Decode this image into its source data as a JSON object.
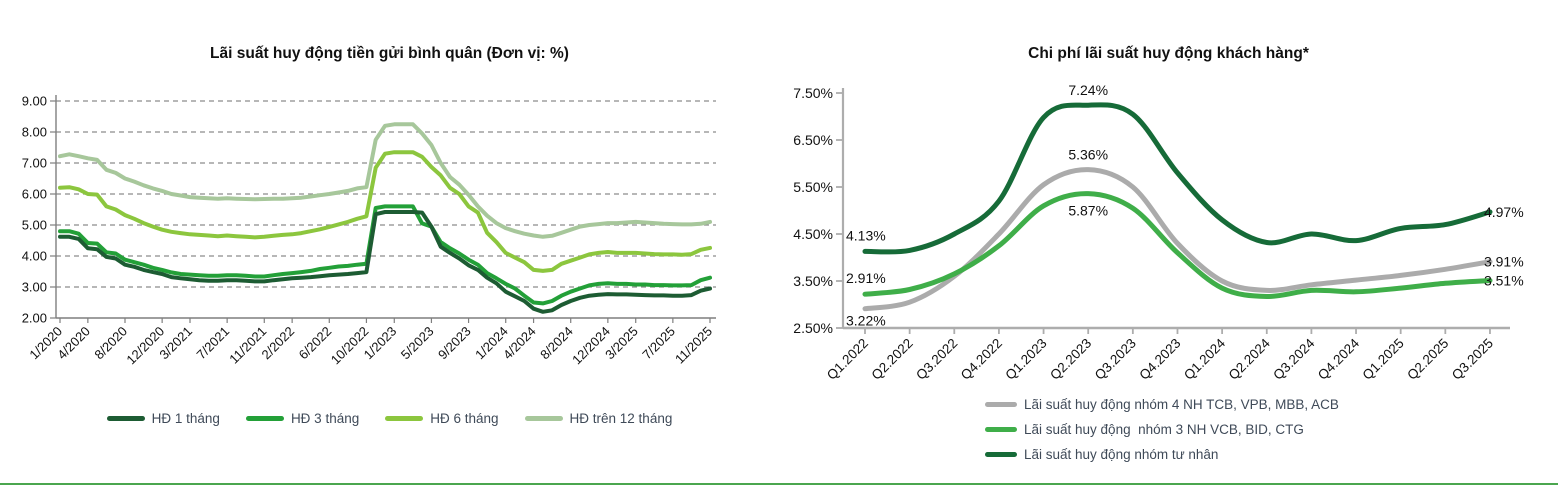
{
  "page": {
    "background": "#FFFFFF",
    "divider_color": "#4BA64F"
  },
  "left_chart": {
    "title": "Lãi suất huy động tiền gửi bình quân (Đơn vị: %)",
    "legend": [
      {
        "label": "HĐ 1 tháng",
        "color": "#1D5C33"
      },
      {
        "label": "HĐ 3 tháng",
        "color": "#23A038"
      },
      {
        "label": "HĐ 6 tháng",
        "color": "#8CC63E"
      },
      {
        "label": "HĐ trên 12 tháng",
        "color": "#A7C79B"
      }
    ]
  },
  "right_chart": {
    "title": "Chi phí lãi suất huy động khách hàng*",
    "legend": [
      {
        "label": "Lãi suất huy động nhóm 4 NH TCB, VPB, MBB, ACB",
        "color": "#ABABAB"
      },
      {
        "label": "Lãi suất huy động  nhóm 3 NH VCB, BID, CTG",
        "color": "#3FAE49"
      },
      {
        "label": "Lãi suất huy động nhóm tư nhân",
        "color": "#166B38"
      }
    ]
  },
  "chart_data": [
    {
      "type": "line",
      "title": "Lãi suất huy động tiền gửi bình quân (Đơn vị: %)",
      "x_unit": "month",
      "x_start": "1/2020",
      "x_end": "11/2025",
      "x_tick_labels": [
        "1/2020",
        "4/2020",
        "8/2020",
        "12/2020",
        "3/2021",
        "7/2021",
        "11/2021",
        "2/2022",
        "6/2022",
        "10/2022",
        "1/2023",
        "5/2023",
        "9/2023",
        "1/2024",
        "4/2024",
        "8/2024",
        "12/2024",
        "3/2025",
        "7/2025",
        "11/2025"
      ],
      "x_tick_month_indices": [
        0,
        3,
        7,
        11,
        14,
        18,
        22,
        25,
        29,
        33,
        36,
        40,
        44,
        48,
        51,
        55,
        59,
        62,
        66,
        70
      ],
      "ylim": [
        2,
        9
      ],
      "y_tick_labels": [
        "9.00",
        "8.00",
        "7.00",
        "6.00",
        "5.00",
        "4.00",
        "3.00",
        "2.00"
      ],
      "grid": "horizontal-dashed",
      "legend_position": "bottom",
      "series": [
        {
          "name": "HĐ 1 tháng",
          "color": "#1D5C33",
          "values": [
            4.62,
            4.62,
            4.55,
            4.25,
            4.22,
            3.97,
            3.92,
            3.72,
            3.65,
            3.55,
            3.48,
            3.42,
            3.32,
            3.28,
            3.25,
            3.22,
            3.2,
            3.2,
            3.22,
            3.22,
            3.2,
            3.18,
            3.18,
            3.22,
            3.25,
            3.28,
            3.3,
            3.32,
            3.35,
            3.38,
            3.4,
            3.42,
            3.45,
            3.48,
            5.35,
            5.42,
            5.42,
            5.42,
            5.42,
            5.4,
            4.95,
            4.3,
            4.1,
            3.92,
            3.7,
            3.55,
            3.3,
            3.12,
            2.85,
            2.7,
            2.55,
            2.3,
            2.2,
            2.25,
            2.42,
            2.55,
            2.65,
            2.72,
            2.75,
            2.77,
            2.76,
            2.76,
            2.75,
            2.74,
            2.73,
            2.73,
            2.72,
            2.72,
            2.74,
            2.88,
            2.95
          ]
        },
        {
          "name": "HĐ 3 tháng",
          "color": "#23A038",
          "values": [
            4.8,
            4.8,
            4.72,
            4.42,
            4.4,
            4.12,
            4.08,
            3.88,
            3.8,
            3.72,
            3.62,
            3.55,
            3.47,
            3.42,
            3.4,
            3.38,
            3.36,
            3.36,
            3.38,
            3.38,
            3.36,
            3.34,
            3.34,
            3.38,
            3.42,
            3.45,
            3.48,
            3.52,
            3.58,
            3.62,
            3.66,
            3.68,
            3.72,
            3.75,
            5.55,
            5.6,
            5.6,
            5.6,
            5.6,
            5.05,
            4.95,
            4.45,
            4.25,
            4.08,
            3.88,
            3.72,
            3.45,
            3.28,
            3.1,
            2.95,
            2.72,
            2.5,
            2.47,
            2.55,
            2.72,
            2.85,
            2.95,
            3.05,
            3.1,
            3.12,
            3.1,
            3.1,
            3.08,
            3.08,
            3.06,
            3.06,
            3.05,
            3.05,
            3.06,
            3.22,
            3.3
          ]
        },
        {
          "name": "HĐ 6 tháng",
          "color": "#8CC63E",
          "values": [
            6.2,
            6.22,
            6.15,
            6.0,
            5.98,
            5.6,
            5.5,
            5.32,
            5.2,
            5.06,
            4.95,
            4.85,
            4.78,
            4.74,
            4.7,
            4.68,
            4.66,
            4.64,
            4.66,
            4.64,
            4.62,
            4.6,
            4.62,
            4.65,
            4.68,
            4.7,
            4.74,
            4.8,
            4.86,
            4.94,
            5.02,
            5.1,
            5.2,
            5.28,
            6.85,
            7.3,
            7.35,
            7.35,
            7.35,
            7.2,
            6.87,
            6.6,
            6.2,
            6.0,
            5.6,
            5.4,
            4.75,
            4.45,
            4.1,
            3.95,
            3.8,
            3.55,
            3.52,
            3.55,
            3.75,
            3.85,
            3.95,
            4.05,
            4.1,
            4.13,
            4.1,
            4.1,
            4.1,
            4.08,
            4.06,
            4.05,
            4.05,
            4.04,
            4.06,
            4.2,
            4.26
          ]
        },
        {
          "name": "HĐ trên 12 tháng",
          "color": "#A7C79B",
          "values": [
            7.22,
            7.28,
            7.22,
            7.15,
            7.1,
            6.78,
            6.68,
            6.5,
            6.4,
            6.28,
            6.18,
            6.1,
            6.0,
            5.95,
            5.9,
            5.88,
            5.86,
            5.85,
            5.86,
            5.85,
            5.84,
            5.83,
            5.84,
            5.85,
            5.85,
            5.86,
            5.88,
            5.92,
            5.96,
            6.0,
            6.05,
            6.1,
            6.18,
            6.22,
            7.75,
            8.2,
            8.25,
            8.25,
            8.25,
            7.95,
            7.58,
            7.0,
            6.55,
            6.3,
            5.97,
            5.6,
            5.3,
            5.06,
            4.9,
            4.8,
            4.72,
            4.66,
            4.62,
            4.65,
            4.75,
            4.85,
            4.95,
            5.0,
            5.03,
            5.06,
            5.06,
            5.08,
            5.1,
            5.08,
            5.06,
            5.04,
            5.03,
            5.02,
            5.02,
            5.04,
            5.1
          ]
        }
      ]
    },
    {
      "type": "line",
      "title": "Chi phí lãi suất huy động khách hàng*",
      "categories": [
        "Q1.2022",
        "Q2.2022",
        "Q3.2022",
        "Q4.2022",
        "Q1.2023",
        "Q2.2023",
        "Q3.2023",
        "Q4.2023",
        "Q1.2024",
        "Q2.2024",
        "Q3.2024",
        "Q4.2024",
        "Q1.2025",
        "Q2.2025",
        "Q3.2025"
      ],
      "ylim": [
        2.5,
        7.5
      ],
      "y_tick_labels": [
        "7.50%",
        "6.50%",
        "5.50%",
        "4.50%",
        "3.50%",
        "2.50%"
      ],
      "grid": "none",
      "legend_position": "bottom-left",
      "series": [
        {
          "name": "Lãi suất huy động nhóm 4 NH TCB, VPB, MBB, ACB",
          "color": "#ABABAB",
          "values": [
            2.91,
            3.05,
            3.6,
            4.5,
            5.55,
            5.87,
            5.5,
            4.3,
            3.5,
            3.3,
            3.42,
            3.52,
            3.62,
            3.75,
            3.91
          ]
        },
        {
          "name": "Lãi suất huy động  nhóm 3 NH VCB, BID, CTG",
          "color": "#3FAE49",
          "values": [
            3.22,
            3.32,
            3.65,
            4.25,
            5.1,
            5.36,
            5.05,
            4.1,
            3.35,
            3.17,
            3.3,
            3.27,
            3.35,
            3.45,
            3.51
          ]
        },
        {
          "name": "Lãi suất huy động nhóm tư nhân",
          "color": "#166B38",
          "values": [
            4.13,
            4.15,
            4.5,
            5.2,
            6.98,
            7.24,
            7.05,
            5.8,
            4.8,
            4.32,
            4.5,
            4.36,
            4.62,
            4.7,
            4.97
          ]
        }
      ],
      "point_labels": [
        {
          "text": "7.24%",
          "x": 5,
          "y": 7.24,
          "pos": "above"
        },
        {
          "text": "5.36%",
          "x": 5,
          "y": 5.87,
          "pos": "above"
        },
        {
          "text": "5.87%",
          "x": 5,
          "y": 5.36,
          "pos": "below"
        },
        {
          "text": "4.13%",
          "x": 0,
          "y": 4.13,
          "pos": "start-above"
        },
        {
          "text": "2.91%",
          "x": 0,
          "y": 3.22,
          "pos": "start-above"
        },
        {
          "text": "3.22%",
          "x": 0,
          "y": 2.91,
          "pos": "start-below"
        },
        {
          "text": "4.97%",
          "x": 14,
          "y": 4.97,
          "pos": "end"
        },
        {
          "text": "3.91%",
          "x": 14,
          "y": 3.91,
          "pos": "end"
        },
        {
          "text": "3.51%",
          "x": 14,
          "y": 3.51,
          "pos": "end"
        }
      ]
    }
  ]
}
